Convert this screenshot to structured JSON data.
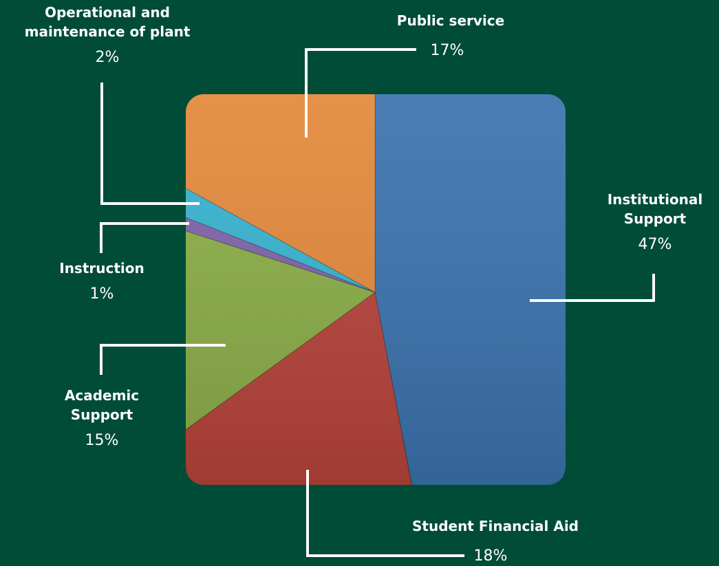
{
  "chart_data": {
    "type": "pie",
    "categories": [
      "Institutional Support",
      "Student Financial Aid",
      "Academic Support",
      "Instruction",
      "Operational and maintenance of plant",
      "Public service"
    ],
    "values": [
      47,
      18,
      15,
      1,
      2,
      17
    ],
    "value_labels": [
      "47%",
      "18%",
      "15%",
      "1%",
      "2%",
      "17%"
    ],
    "colors": [
      "#3a72ad",
      "#b6433a",
      "#8aad47",
      "#7e62a8",
      "#36b2d0",
      "#e3883a"
    ]
  }
}
